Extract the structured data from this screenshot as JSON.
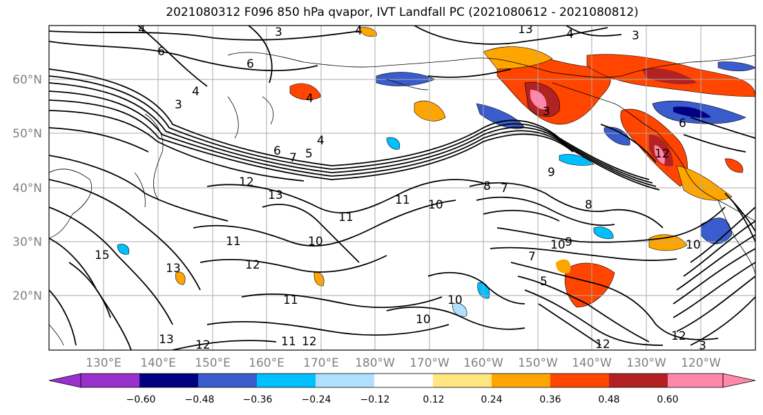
{
  "title": "2021080312 F096 850 hPa qvapor, IVT Landfall PC (2021080612 - 2021080812)",
  "lat_labels": [
    "60°N",
    "50°N",
    "40°N",
    "30°N",
    "20°N"
  ],
  "lon_labels": [
    "130°E",
    "140°E",
    "150°E",
    "160°E",
    "170°E",
    "180°W",
    "170°W",
    "160°W",
    "150°W",
    "140°W",
    "130°W",
    "120°W"
  ],
  "colorbar": {
    "ticks": [
      "−0.60",
      "−0.48",
      "−0.36",
      "−0.24",
      "−0.12",
      "0.12",
      "0.24",
      "0.36",
      "0.48",
      "0.60"
    ],
    "colors": [
      "#9932cc",
      "#000080",
      "#3a5ccc",
      "#00bfff",
      "#b0e0ff",
      "#ffffff",
      "#ffe680",
      "#ffa500",
      "#ff4500",
      "#b22222",
      "#ff88aa"
    ]
  },
  "contour_labels": [
    "4",
    "3",
    "6",
    "4",
    "3",
    "6",
    "4",
    "4",
    "4",
    "7",
    "5",
    "6",
    "12",
    "13",
    "11",
    "10",
    "11",
    "12",
    "15",
    "13",
    "11",
    "10",
    "8",
    "7",
    "9",
    "7",
    "5",
    "3",
    "12",
    "11",
    "12",
    "13",
    "11",
    "12",
    "10",
    "10",
    "9",
    "8",
    "6",
    "3",
    "4",
    "3",
    "13",
    "12",
    "12",
    "10",
    "10"
  ],
  "colors": {
    "axis": "#000000",
    "tick_label": "#808080",
    "grid": "#aaaaaa"
  }
}
